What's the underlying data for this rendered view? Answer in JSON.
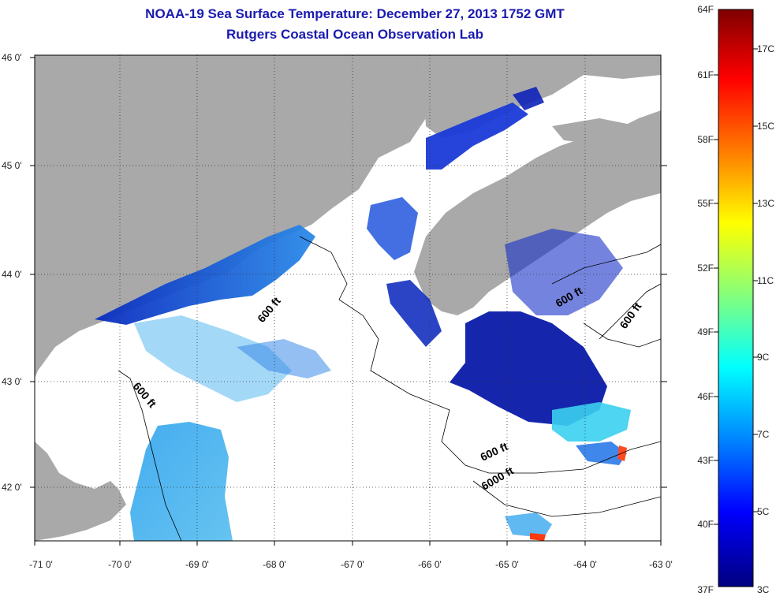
{
  "header": {
    "title": "NOAA-19 Sea Surface Temperature:  December 27, 2013 1752 GMT",
    "subtitle": "Rutgers Coastal Ocean Observation Lab"
  },
  "axes": {
    "longitude_labels": [
      "-71 0'",
      "-70 0'",
      "-69 0'",
      "-68 0'",
      "-67 0'",
      "-66 0'",
      "-65 0'",
      "-64 0'",
      "-63 0'"
    ],
    "latitude_labels": [
      "46 0'",
      "45 0'",
      "44 0'",
      "43 0'",
      "42 0'"
    ],
    "lon_range": [
      -71,
      -63
    ],
    "lat_range": [
      41.5,
      46.1
    ]
  },
  "contours": {
    "labels": [
      "600 ft",
      "600 ft",
      "600 ft",
      "600 ft",
      "600 ft",
      "6000 ft"
    ]
  },
  "colorbar": {
    "fahrenheit_labels": [
      "64F",
      "61F",
      "58F",
      "55F",
      "52F",
      "49F",
      "46F",
      "43F",
      "40F",
      "37F"
    ],
    "celsius_labels": [
      "17C",
      "15C",
      "13C",
      "11C",
      "9C",
      "7C",
      "5C",
      "3C"
    ],
    "colors": [
      "#7f0000",
      "#ff0000",
      "#ff8000",
      "#ffff00",
      "#80ff80",
      "#00ffff",
      "#0080ff",
      "#0000ff",
      "#00007f"
    ]
  },
  "colors": {
    "land": "#a9a9a9",
    "ocean": "#ffffff",
    "title": "#1a1ab0"
  }
}
